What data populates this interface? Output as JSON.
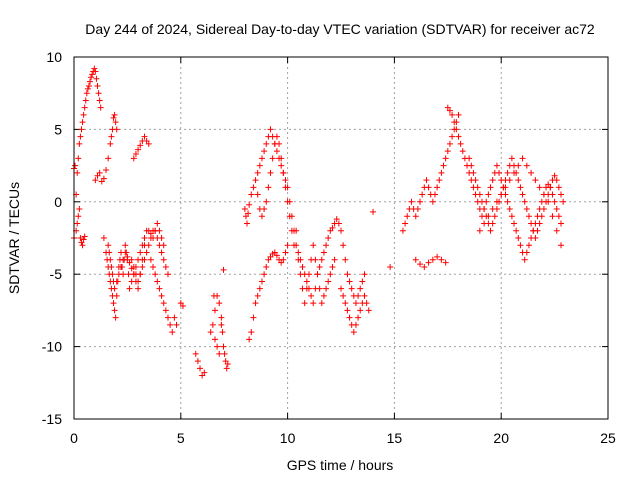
{
  "chart_data": {
    "type": "scatter",
    "title": "Day 244 of 2024, Sidereal Day-to-day VTEC variation (SDTVAR) for receiver ac72",
    "xlabel": "GPS time / hours",
    "ylabel": "SDTVAR / TECUs",
    "xlim": [
      0,
      25
    ],
    "ylim": [
      -15,
      10
    ],
    "xticks": [
      0,
      5,
      10,
      15,
      20,
      25
    ],
    "yticks": [
      -15,
      -10,
      -5,
      0,
      5,
      10
    ],
    "grid": true,
    "marker": "+",
    "color": "#ff0000",
    "series": [
      {
        "name": "SDTVAR",
        "x": [
          0.0,
          0.1,
          0.15,
          0.2,
          0.25,
          0.3,
          0.35,
          0.4,
          0.45,
          0.5,
          0.55,
          0.6,
          0.65,
          0.7,
          0.75,
          0.8,
          0.85,
          0.9,
          0.95,
          1.0,
          1.05,
          1.1,
          1.15,
          1.2,
          1.25,
          0.0,
          0.05,
          0.1,
          0.15,
          0.2,
          0.25,
          0.3,
          0.35,
          0.4,
          0.45,
          0.5,
          1.0,
          1.1,
          1.2,
          1.3,
          1.4,
          1.5,
          1.6,
          1.7,
          1.75,
          1.8,
          1.85,
          1.9,
          1.95,
          2.0,
          1.4,
          1.5,
          1.55,
          1.6,
          1.65,
          1.7,
          1.75,
          1.8,
          1.85,
          1.9,
          1.95,
          2.0,
          2.05,
          2.1,
          2.15,
          2.2,
          2.25,
          2.3,
          2.35,
          2.4,
          2.45,
          2.5,
          2.55,
          2.6,
          2.7,
          2.8,
          2.9,
          3.0,
          3.1,
          3.2,
          3.3,
          3.4,
          3.5,
          3.6,
          3.7,
          3.8,
          3.9,
          4.0,
          4.1,
          4.2,
          1.6,
          1.65,
          1.7,
          1.75,
          1.8,
          1.85,
          1.9,
          2.0,
          2.1,
          2.2,
          2.3,
          2.4,
          2.5,
          2.6,
          2.7,
          2.8,
          2.9,
          3.0,
          3.1,
          3.2,
          3.3,
          2.7,
          2.8,
          2.9,
          3.0,
          3.1,
          3.2,
          3.3,
          3.4,
          3.5,
          3.6,
          3.7,
          3.8,
          3.9,
          4.0,
          4.1,
          4.2,
          4.3,
          4.4,
          3.6,
          3.7,
          3.8,
          3.9,
          4.0,
          4.1,
          4.2,
          4.3,
          4.4,
          4.5,
          4.6,
          4.7,
          4.8,
          5.0,
          5.1,
          2.8,
          2.9,
          3.0,
          3.1,
          3.2,
          3.3,
          3.4,
          3.5,
          5.7,
          5.8,
          5.9,
          6.0,
          6.1,
          6.4,
          6.5,
          6.6,
          6.7,
          6.8,
          6.9,
          6.95,
          7.0,
          7.05,
          7.1,
          7.15,
          7.2,
          6.55,
          6.6,
          6.7,
          6.8,
          6.9,
          7.0,
          8.0,
          8.05,
          8.1,
          8.15,
          8.2,
          8.3,
          8.4,
          8.5,
          8.6,
          8.7,
          8.8,
          8.9,
          9.0,
          9.1,
          9.2,
          9.3,
          9.4,
          9.5,
          9.6,
          9.7,
          9.8,
          9.9,
          10.0,
          10.1,
          10.2,
          10.3,
          10.4,
          8.2,
          8.3,
          8.4,
          8.5,
          8.6,
          8.7,
          8.8,
          8.9,
          9.0,
          9.1,
          9.2,
          9.3,
          9.4,
          9.5,
          9.6,
          9.7,
          9.8,
          9.9,
          10.0,
          8.6,
          8.7,
          8.8,
          8.9,
          9.0,
          9.1,
          9.2,
          9.3,
          9.4,
          9.5,
          9.6,
          9.7,
          9.8,
          9.9,
          10.0,
          10.1,
          10.2,
          10.3,
          10.4,
          10.5,
          10.6,
          10.7,
          10.8,
          10.9,
          11.0,
          11.1,
          11.2,
          11.3,
          11.4,
          11.5,
          11.6,
          11.7,
          11.8,
          11.9,
          12.0,
          12.1,
          12.2,
          10.5,
          10.6,
          10.7,
          10.8,
          10.9,
          11.0,
          11.1,
          11.2,
          11.3,
          11.4,
          11.5,
          11.6,
          11.7,
          11.8,
          11.9,
          12.0,
          12.1,
          12.2,
          12.3,
          12.4,
          12.5,
          12.6,
          12.7,
          12.8,
          12.9,
          13.0,
          13.1,
          13.2,
          13.3,
          13.4,
          13.5,
          13.6,
          12.5,
          12.6,
          12.7,
          12.8,
          12.9,
          13.0,
          13.1,
          13.2,
          13.3,
          13.4,
          13.5,
          13.6,
          13.7,
          13.8,
          14.0,
          14.8,
          15.4,
          15.5,
          15.6,
          15.7,
          15.8,
          15.9,
          16.0,
          16.1,
          16.2,
          16.3,
          16.4,
          16.5,
          16.6,
          16.7,
          16.8,
          16.9,
          17.0,
          17.1,
          17.2,
          17.3,
          17.4,
          17.5,
          17.6,
          17.7,
          17.8,
          17.9,
          18.0,
          16.0,
          16.2,
          16.4,
          16.6,
          16.8,
          17.0,
          17.2,
          17.4,
          17.5,
          17.6,
          17.7,
          17.8,
          17.9,
          18.0,
          18.1,
          18.2,
          18.3,
          18.4,
          18.5,
          18.6,
          18.7,
          18.8,
          18.9,
          19.0,
          19.1,
          19.2,
          19.3,
          19.4,
          19.5,
          19.6,
          19.7,
          19.8,
          19.9,
          20.0,
          20.1,
          20.2,
          20.3,
          20.4,
          20.5,
          20.6,
          20.7,
          20.8,
          20.9,
          21.0,
          21.1,
          21.2,
          21.3,
          21.4,
          21.5,
          21.6,
          21.7,
          21.8,
          21.9,
          22.0,
          22.1,
          22.2,
          22.3,
          22.4,
          22.5,
          22.6,
          22.7,
          22.8,
          18.5,
          18.6,
          18.7,
          18.8,
          18.9,
          19.0,
          19.1,
          19.2,
          19.3,
          19.4,
          19.5,
          19.6,
          19.7,
          19.8,
          19.9,
          20.0,
          20.1,
          20.2,
          20.3,
          20.4,
          20.5,
          20.6,
          20.7,
          20.8,
          20.9,
          21.0,
          21.1,
          21.2,
          21.3,
          21.4,
          21.5,
          21.6,
          21.7,
          21.8,
          21.9,
          22.0,
          22.1,
          22.2,
          22.3,
          22.4,
          22.5,
          22.6,
          22.7,
          22.8,
          22.9,
          19.0,
          19.2,
          19.4,
          19.6,
          19.8,
          20.0,
          20.2,
          20.4,
          20.6,
          20.8,
          21.0,
          21.2,
          21.4,
          21.6,
          21.8,
          22.0,
          22.2,
          22.4,
          22.6,
          22.8
        ],
        "y": [
          -2.5,
          0.5,
          2.0,
          3.0,
          4.0,
          4.5,
          5.0,
          5.5,
          6.0,
          6.5,
          7.0,
          7.5,
          7.8,
          8.0,
          8.3,
          8.6,
          8.8,
          9.0,
          9.2,
          9.0,
          8.5,
          8.0,
          7.5,
          7.0,
          6.5,
          2.3,
          2.5,
          -2.0,
          -1.5,
          -1.0,
          -0.5,
          -2.5,
          -2.8,
          -3.0,
          -2.6,
          -2.4,
          1.5,
          1.8,
          2.0,
          1.4,
          1.6,
          2.2,
          3.0,
          4.0,
          4.5,
          5.0,
          5.8,
          6.0,
          5.5,
          5.0,
          -2.5,
          -3.5,
          -4.0,
          -4.5,
          -5.0,
          -5.5,
          -6.0,
          -6.5,
          -7.0,
          -7.5,
          -8.0,
          -6.5,
          -5.5,
          -4.5,
          -4.0,
          -3.5,
          -4.5,
          -5.0,
          -4.0,
          -3.0,
          -3.5,
          -4.0,
          -5.0,
          -6.0,
          -5.5,
          -5.0,
          -4.5,
          -4.0,
          -3.5,
          -3.0,
          -2.5,
          -2.0,
          -2.0,
          -2.2,
          -2.5,
          -2.0,
          -1.5,
          -2.0,
          -2.5,
          -3.0,
          -3.0,
          -3.5,
          -4.0,
          -4.5,
          -5.0,
          -5.5,
          -6.0,
          -5.5,
          -5.0,
          -4.5,
          -4.0,
          -3.5,
          -3.8,
          -4.2,
          -4.6,
          -5.0,
          -5.5,
          -6.0,
          -5.0,
          -4.0,
          -3.0,
          -4.0,
          -4.5,
          -5.0,
          -5.5,
          -5.0,
          -4.5,
          -4.0,
          -3.5,
          -3.0,
          -2.5,
          -2.0,
          -2.0,
          -2.5,
          -3.0,
          -3.5,
          -4.0,
          -4.5,
          -5.0,
          -4.0,
          -4.5,
          -5.0,
          -5.5,
          -6.0,
          -6.5,
          -7.0,
          -7.5,
          -8.0,
          -8.5,
          -9.0,
          -8.0,
          -8.5,
          -7.0,
          -7.2,
          3.0,
          3.3,
          3.6,
          3.9,
          4.2,
          4.5,
          4.2,
          4.0,
          -10.5,
          -11.0,
          -11.5,
          -12.0,
          -11.8,
          -9.0,
          -8.5,
          -7.5,
          -6.5,
          -7.0,
          -8.0,
          -9.0,
          -10.0,
          -10.5,
          -11.0,
          -11.5,
          -11.2,
          -6.5,
          -9.5,
          -10.0,
          -10.5,
          -8.5,
          -4.7,
          -0.5,
          -1.0,
          -1.5,
          -0.8,
          -0.2,
          0.5,
          1.0,
          1.5,
          0.5,
          -0.5,
          -1.0,
          -0.5,
          0.0,
          1.0,
          2.0,
          3.0,
          4.0,
          4.5,
          4.0,
          3.0,
          2.0,
          1.0,
          0.0,
          -1.0,
          -2.0,
          -3.0,
          -2.0,
          -9.5,
          -9.0,
          -8.0,
          -7.0,
          -6.5,
          -6.0,
          -5.5,
          -5.0,
          -4.5,
          -4.0,
          -3.8,
          -3.6,
          -3.5,
          -3.7,
          -4.0,
          -4.2,
          -4.0,
          -3.5,
          -3.0,
          2.0,
          2.5,
          3.0,
          3.5,
          4.0,
          4.5,
          5.0,
          4.5,
          4.0,
          3.5,
          3.0,
          2.5,
          2.0,
          1.5,
          1.0,
          0.0,
          -1.0,
          -2.0,
          -3.0,
          -4.0,
          -5.0,
          -6.0,
          -7.0,
          -6.0,
          -5.0,
          -4.0,
          -3.0,
          -4.0,
          -5.0,
          -6.0,
          -7.0,
          -6.5,
          -6.0,
          -5.5,
          -5.0,
          -4.5,
          -4.0,
          -3.5,
          -4.0,
          -4.5,
          -5.0,
          -5.5,
          -6.0,
          -6.5,
          -7.0,
          -6.0,
          -5.0,
          -4.5,
          -4.0,
          -3.5,
          -3.0,
          -2.5,
          -2.0,
          -1.8,
          -1.5,
          -1.2,
          -1.5,
          -2.0,
          -3.0,
          -4.0,
          -5.0,
          -5.5,
          -6.0,
          -6.5,
          -7.0,
          -6.5,
          -6.0,
          -5.5,
          -5.0,
          -6.0,
          -6.5,
          -7.0,
          -7.5,
          -8.0,
          -8.5,
          -9.0,
          -8.5,
          -8.0,
          -7.5,
          -7.0,
          -6.5,
          -7.0,
          -7.5,
          -0.7,
          -4.5,
          -2.0,
          -1.5,
          -1.0,
          -0.5,
          0.0,
          -0.5,
          -1.0,
          -0.5,
          0.0,
          0.5,
          1.0,
          1.5,
          1.0,
          0.5,
          0.0,
          0.5,
          1.0,
          1.5,
          2.0,
          2.5,
          3.0,
          3.5,
          4.0,
          4.5,
          5.0,
          5.5,
          6.0,
          -4.0,
          -4.3,
          -4.5,
          -4.2,
          -4.0,
          -3.8,
          -4.0,
          -4.2,
          6.5,
          6.3,
          6.0,
          5.5,
          5.0,
          4.5,
          4.0,
          3.5,
          3.0,
          2.5,
          2.0,
          1.5,
          1.0,
          0.5,
          0.0,
          -0.5,
          -1.0,
          -0.5,
          0.0,
          0.5,
          1.0,
          1.5,
          2.0,
          2.5,
          2.0,
          1.5,
          1.0,
          0.5,
          0.0,
          -0.5,
          -1.0,
          -1.5,
          -2.0,
          -2.5,
          -3.0,
          -3.5,
          -4.0,
          -3.5,
          -3.0,
          -2.5,
          -2.0,
          -1.5,
          -1.0,
          -0.5,
          0.0,
          0.5,
          1.0,
          1.2,
          1.0,
          0.5,
          0.0,
          -0.5,
          -1.0,
          -1.5,
          3.0,
          2.5,
          2.0,
          1.5,
          1.0,
          0.5,
          0.0,
          -0.5,
          -1.0,
          -1.5,
          -2.0,
          -1.5,
          -1.0,
          -0.5,
          0.0,
          0.5,
          1.0,
          1.5,
          2.0,
          2.5,
          3.0,
          2.5,
          2.0,
          1.5,
          1.0,
          0.5,
          0.0,
          -0.5,
          -1.0,
          -1.5,
          -2.0,
          -2.5,
          -2.0,
          -1.5,
          -1.0,
          -0.5,
          0.0,
          0.5,
          1.0,
          1.5,
          1.8,
          1.5,
          1.0,
          0.5,
          0.0,
          -2.0,
          -1.5,
          -1.0,
          -0.5,
          0.0,
          0.5,
          1.0,
          1.5,
          2.0,
          2.5,
          3.0,
          2.5,
          2.0,
          1.5,
          1.0,
          0.5,
          0.0,
          -1.0,
          -2.0,
          -3.0
        ]
      }
    ]
  }
}
